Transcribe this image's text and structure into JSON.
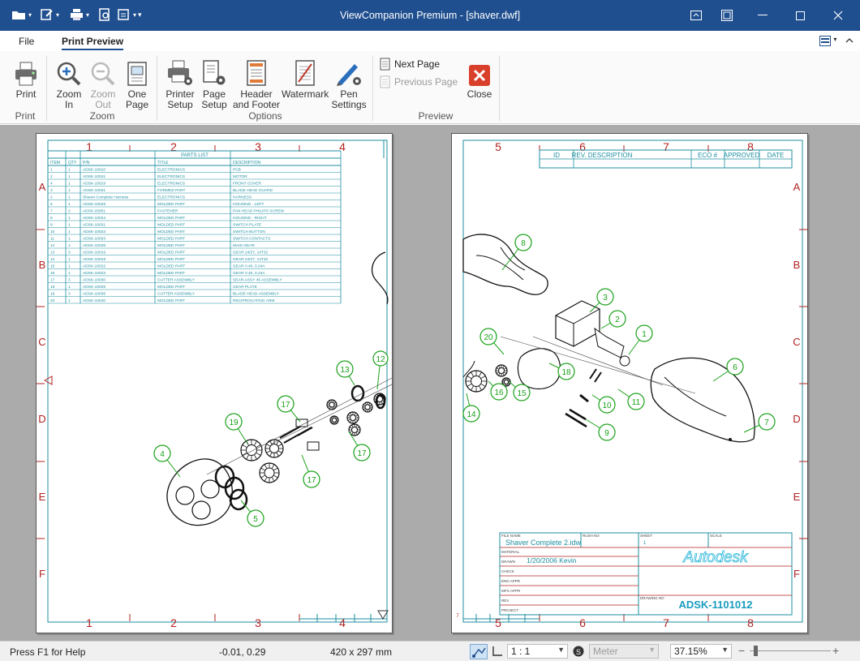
{
  "window": {
    "title": "ViewCompanion Premium - [shaver.dwf]"
  },
  "menu": {
    "tabs": [
      {
        "label": "File"
      },
      {
        "label": "Print Preview"
      }
    ]
  },
  "ribbon": {
    "buttons": [
      {
        "label1": "Print",
        "label2": ""
      },
      {
        "label1": "Zoom",
        "label2": "In"
      },
      {
        "label1": "Zoom",
        "label2": "Out"
      },
      {
        "label1": "One",
        "label2": "Page"
      },
      {
        "label1": "Printer",
        "label2": "Setup"
      },
      {
        "label1": "Page",
        "label2": "Setup"
      },
      {
        "label1": "Header",
        "label2": "and Footer"
      },
      {
        "label1": "Watermark",
        "label2": ""
      },
      {
        "label1": "Pen",
        "label2": "Settings"
      },
      {
        "label1": "Close",
        "label2": ""
      }
    ],
    "next_page": "Next Page",
    "previous_page": "Previous Page",
    "groups": {
      "print": "Print",
      "zoom": "Zoom",
      "options": "Options",
      "preview": "Preview"
    }
  },
  "drawing": {
    "cols_left": [
      "1",
      "2",
      "3",
      "4"
    ],
    "cols_right": [
      "5",
      "6",
      "7",
      "8"
    ],
    "rows": [
      "A",
      "B",
      "C",
      "D",
      "E",
      "F"
    ],
    "parts_list_title": "PARTS LIST",
    "parts_list_headers": [
      "ITEM",
      "QTY",
      "P/N",
      "TITLE",
      "DESCRIPTION"
    ],
    "parts_list_rows": [
      [
        "1",
        "1",
        "ADSK-10010",
        "ELECTRONICS",
        "PCB"
      ],
      [
        "2",
        "1",
        "ADSK-10041",
        "ELECTRONICS",
        "MOTOR"
      ],
      [
        "4",
        "1",
        "ADSK-10019",
        "ELECTRONICS",
        "FRONT COVER"
      ],
      [
        "3",
        "1",
        "ADSK-10031",
        "FORMED PART",
        "BLADE HEAD GUARD"
      ],
      [
        "2",
        "1",
        "Shaver Complete Harness",
        "ELECTRONICS",
        "HARNESS"
      ],
      [
        "5",
        "1",
        "ADSK-10029",
        "MOLDED PART",
        "HOUSING - LEFT"
      ],
      [
        "7",
        "2",
        "ADSK-25001",
        "FASTENER",
        "PAN HEAD PHILIPS SCREW"
      ],
      [
        "8",
        "1",
        "ADSK-10024",
        "MOLDED PART",
        "HOUSING - RIGHT"
      ],
      [
        "9",
        "1",
        "ADSK-10031",
        "MOLDED PART",
        "SWITCH PLATE"
      ],
      [
        "10",
        "1",
        "ADSK-10023",
        "MOLDED PART",
        "SWITCH BUTTON"
      ],
      [
        "11",
        "1",
        "ADSK-10033",
        "MOLDED PART",
        "SWITCH CONTACTS"
      ],
      [
        "12",
        "1",
        "ADSK-10038",
        "MOLDED PART",
        "MAIN GEAR"
      ],
      [
        "13",
        "3",
        "ADSK-10019",
        "MOLDED PART",
        "GEAR 24/27, 14T32"
      ],
      [
        "14",
        "1",
        "ADSK-10019",
        "MOLDED PART",
        "GEAR 24/27, 14T32"
      ],
      [
        "15",
        "1",
        "ADSK-10022",
        "MOLDED PART",
        "GEAR V.40, 0.24A"
      ],
      [
        "16",
        "1",
        "ADSK-10023",
        "MOLDED PART",
        "GEAR V.40, 0.24A"
      ],
      [
        "17",
        "3",
        "ADSK-10030",
        "CUTTER ASSEMBLY",
        "SEAR-ASSY 45 ASSEMBLY"
      ],
      [
        "18",
        "1",
        "ADSK-10039",
        "MOLDED PART",
        "GEAR PLATE"
      ],
      [
        "19",
        "3",
        "ADSK-10036",
        "CUTTER ASSEMBLY",
        "BLADE HEAD ASSEMBLY"
      ],
      [
        "20",
        "1",
        "ADSK-10040",
        "MOLDED PART",
        "RECIPROCATING ARM"
      ]
    ],
    "revision_headers": [
      "ID",
      "REV. DESCRIPTION",
      "ECO #",
      "APPROVED",
      "DATE"
    ],
    "callouts_left": [
      "12",
      "13",
      "17",
      "19",
      "4",
      "17",
      "17",
      "5"
    ],
    "callouts_right": [
      "8",
      "3",
      "2",
      "1",
      "20",
      "18",
      "6",
      "16",
      "15",
      "11",
      "14",
      "10",
      "9",
      "7"
    ],
    "title_block": {
      "file_name_label": "FILE NAME",
      "file_name": "Shaver Complete 2.idw",
      "rush_no_label": "RUSH NO",
      "sheet_label": "SHEET",
      "sheet_value": "1",
      "scale_label": "SCALE",
      "material_label": "MATERIAL",
      "drawn_label": "DRAWN",
      "drawn_value": "1/20/2006 Kevin",
      "check_label": "CHECK",
      "eng_appr_label": "ENG APPR",
      "mfg_appr_label": "MFG APPR",
      "rev_label": "REV",
      "project_label": "PROJECT",
      "drawing_no_label": "DRAWING NO",
      "company": "Autodesk",
      "drawing_number": "ADSK-1101012"
    }
  },
  "statusbar": {
    "help": "Press F1 for Help",
    "coords": "-0.01, 0.29",
    "paper": "420 x 297 mm",
    "scale": "1 : 1",
    "unit": "Meter",
    "zoom": "37.15%"
  },
  "colors": {
    "title_bar": "#1f4f8f",
    "drawing_border": "#1e8fa0",
    "zone_marks": "#b22222",
    "callouts": "#19a119",
    "close_button": "#d9402c"
  }
}
